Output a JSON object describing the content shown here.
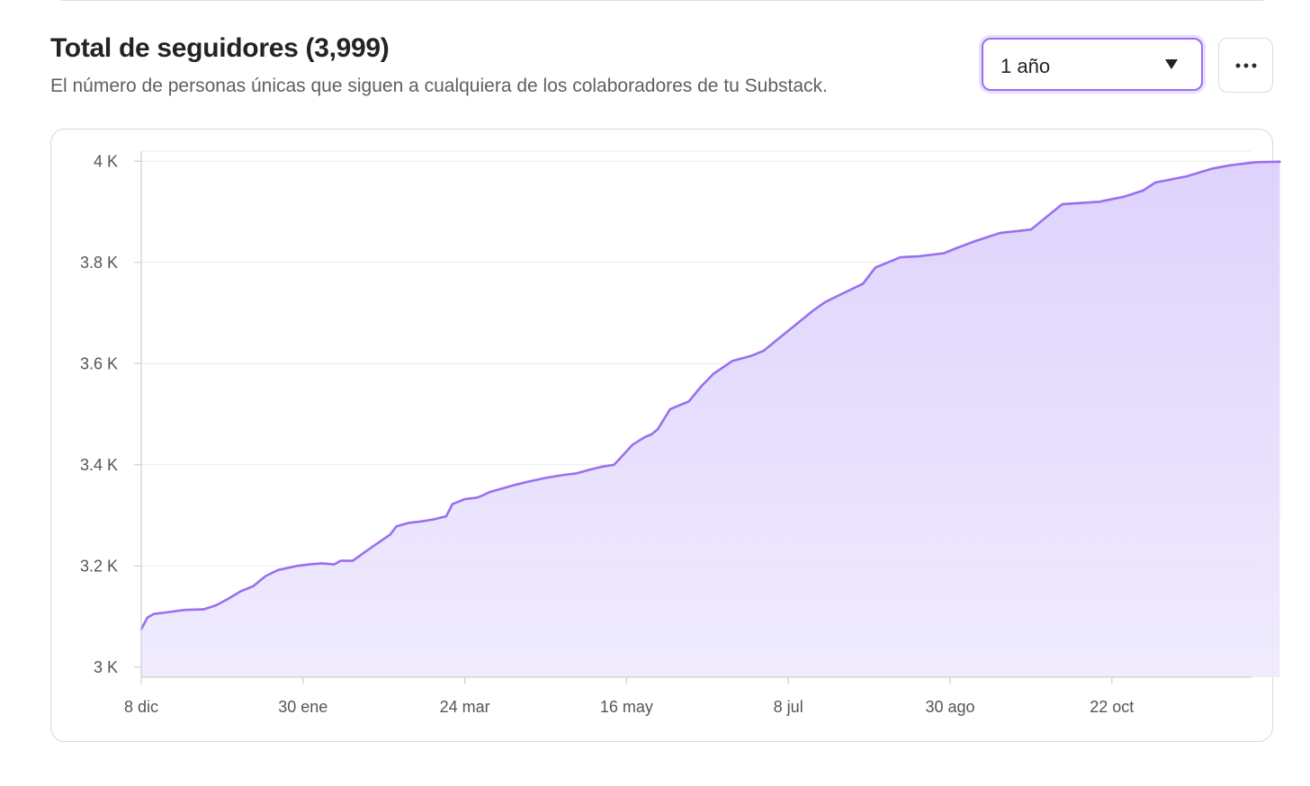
{
  "header": {
    "title": "Total de seguidores (3,999)",
    "subtitle": "El número de personas únicas que siguen a cualquiera de los colaboradores de tu Substack."
  },
  "controls": {
    "range_value": "1 año",
    "caret_icon": "caret-down-icon",
    "more_icon": "more-horizontal-icon"
  },
  "colors": {
    "line": "#9a6ff0",
    "area_top": "#dcd0fc",
    "area_bottom": "#eee9fd",
    "grid": "#ececec",
    "axis": "#cfcfcf"
  },
  "chart_data": {
    "type": "area",
    "title": "",
    "xlabel": "",
    "ylabel": "",
    "x_ticks": [
      "8 dic",
      "30 ene",
      "24 mar",
      "16 may",
      "8 jul",
      "30 ago",
      "22 oct"
    ],
    "y_ticks": [
      "3 K",
      "3.2 K",
      "3.4 K",
      "3.6 K",
      "3.8 K",
      "4 K"
    ],
    "ylim": [
      2980,
      4020
    ],
    "grid": true,
    "legend": "none",
    "x_unit": "days since 8 dic",
    "x": [
      0,
      2,
      4,
      8,
      14,
      20,
      24,
      28,
      32,
      36,
      40,
      44,
      48,
      50,
      54,
      58,
      62,
      64,
      68,
      72,
      76,
      80,
      82,
      86,
      90,
      94,
      98,
      100,
      104,
      108,
      110,
      112,
      116,
      120,
      124,
      130,
      136,
      140,
      144,
      148,
      152,
      158,
      162,
      164,
      166,
      170,
      176,
      178,
      180,
      184,
      190,
      196,
      200,
      204,
      210,
      216,
      220,
      226,
      232,
      236,
      240,
      244,
      250,
      258,
      262,
      268,
      276,
      286,
      296,
      308,
      316,
      322,
      326,
      336,
      344,
      350,
      358,
      366
    ],
    "values": [
      3075,
      3098,
      3105,
      3108,
      3113,
      3114,
      3122,
      3135,
      3150,
      3160,
      3180,
      3192,
      3197,
      3200,
      3203,
      3205,
      3203,
      3210,
      3210,
      3228,
      3245,
      3262,
      3278,
      3285,
      3288,
      3292,
      3298,
      3322,
      3332,
      3335,
      3340,
      3346,
      3353,
      3360,
      3366,
      3374,
      3380,
      3383,
      3390,
      3396,
      3400,
      3440,
      3455,
      3460,
      3470,
      3510,
      3525,
      3540,
      3555,
      3580,
      3605,
      3615,
      3625,
      3645,
      3675,
      3705,
      3722,
      3740,
      3758,
      3790,
      3800,
      3810,
      3812,
      3818,
      3828,
      3842,
      3858,
      3865,
      3915,
      3920,
      3930,
      3942,
      3958,
      3970,
      3985,
      3992,
      3998,
      3999
    ]
  }
}
